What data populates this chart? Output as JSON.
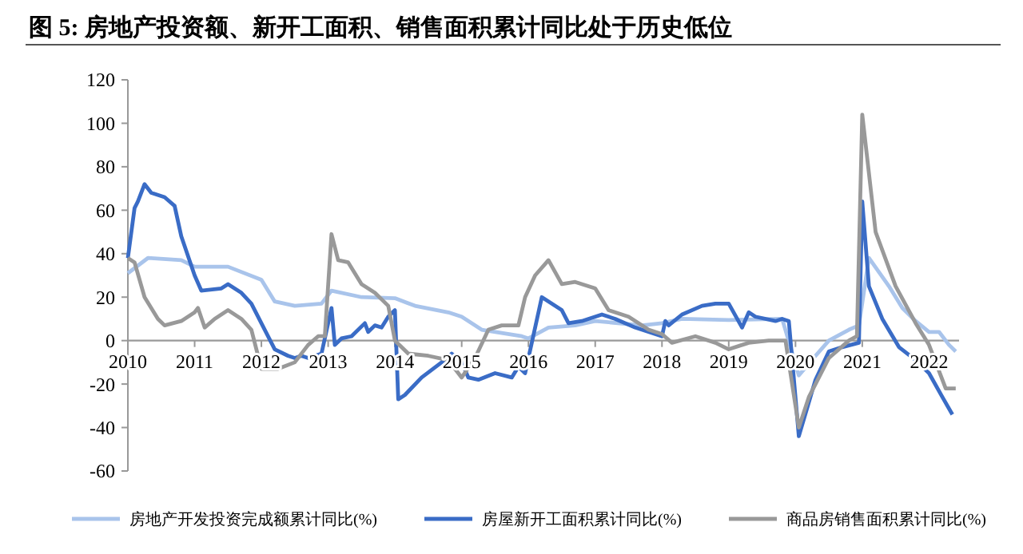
{
  "chart_data": {
    "type": "line",
    "title": "图  5:  房地产投资额、新开工面积、销售面积累计同比处于历史低位",
    "xlim": [
      2010,
      2022.45
    ],
    "xticks": [
      2010,
      2011,
      2012,
      2013,
      2014,
      2015,
      2016,
      2017,
      2018,
      2019,
      2020,
      2021,
      2022
    ],
    "ylim": [
      -60,
      120
    ],
    "yticks": [
      -60,
      -40,
      -20,
      0,
      20,
      40,
      60,
      80,
      100,
      120
    ],
    "grid": false,
    "legend": "bottom",
    "line_style": "solid",
    "series": [
      {
        "name": "房地产开发投资完成额累计同比(%)",
        "color": "#a9c4eb",
        "x": [
          2010,
          2010.3,
          2010.8,
          2011,
          2011.5,
          2012,
          2012.2,
          2012.5,
          2012.9,
          2013.05,
          2013.5,
          2014,
          2014.3,
          2014.8,
          2015,
          2015.3,
          2015.9,
          2016,
          2016.3,
          2016.7,
          2017,
          2017.7,
          2018,
          2018.3,
          2019,
          2019.8,
          2020.05,
          2020.3,
          2020.5,
          2020.8,
          2020.95,
          2021.1,
          2021.4,
          2021.6,
          2021.8,
          2022,
          2022.15,
          2022.3,
          2022.4
        ],
        "values": [
          31,
          38,
          37,
          34,
          34,
          28,
          18,
          16,
          17,
          23,
          20,
          19.5,
          16,
          13,
          11,
          5,
          2,
          1,
          6,
          7,
          9,
          7,
          8,
          10,
          9.5,
          10,
          -16,
          -7,
          0,
          5,
          7,
          38,
          25,
          15,
          9,
          4,
          4,
          -2,
          -5
        ]
      },
      {
        "name": "房屋新开工面积累计同比(%)",
        "color": "#3a6cc6",
        "x": [
          2010,
          2010.1,
          2010.15,
          2010.25,
          2010.35,
          2010.55,
          2010.7,
          2010.8,
          2011,
          2011.1,
          2011.4,
          2011.5,
          2011.7,
          2011.85,
          2012.05,
          2012.2,
          2012.4,
          2012.5,
          2012.6,
          2012.7,
          2012.9,
          2013.05,
          2013.1,
          2013.2,
          2013.35,
          2013.55,
          2013.6,
          2013.7,
          2013.8,
          2013.9,
          2014,
          2014.05,
          2014.15,
          2014.4,
          2014.7,
          2014.85,
          2015,
          2015.1,
          2015.25,
          2015.5,
          2015.75,
          2015.85,
          2015.95,
          2016.2,
          2016.5,
          2016.6,
          2016.8,
          2017.1,
          2017.3,
          2017.6,
          2018,
          2018.05,
          2018.1,
          2018.3,
          2018.6,
          2018.8,
          2019,
          2019.2,
          2019.3,
          2019.4,
          2019.7,
          2019.8,
          2019.9,
          2020.05,
          2020.3,
          2020.5,
          2020.7,
          2020.95,
          2021,
          2021.1,
          2021.3,
          2021.55,
          2021.8,
          2022,
          2022.2,
          2022.35
        ],
        "values": [
          38,
          61,
          64,
          72,
          68,
          66,
          62,
          48,
          30,
          23,
          24,
          26,
          22,
          17,
          5,
          -4,
          -7,
          -8,
          -7,
          -8,
          -6,
          15,
          -2,
          1,
          2,
          8,
          4,
          7,
          6,
          11,
          14,
          -27,
          -25,
          -17,
          -10,
          -6,
          -10,
          -17,
          -18,
          -15,
          -17,
          -12,
          -15,
          20,
          14,
          8,
          9,
          12,
          10,
          6,
          2,
          9,
          7,
          12,
          16,
          17,
          17,
          6,
          13,
          11,
          9,
          10,
          9,
          -44,
          -18,
          -5,
          -3,
          -1,
          64,
          25,
          10,
          -3,
          -9,
          -15,
          -26,
          -34
        ]
      },
      {
        "name": "商品房销售面积累计同比(%)",
        "color": "#999999",
        "x": [
          2010,
          2010.1,
          2010.25,
          2010.45,
          2010.55,
          2010.8,
          2011,
          2011.05,
          2011.15,
          2011.3,
          2011.5,
          2011.7,
          2011.85,
          2012,
          2012.25,
          2012.5,
          2012.7,
          2012.85,
          2012.95,
          2013.05,
          2013.15,
          2013.3,
          2013.5,
          2013.7,
          2013.9,
          2014,
          2014.2,
          2014.5,
          2014.8,
          2015,
          2015.2,
          2015.4,
          2015.6,
          2015.85,
          2015.95,
          2016.1,
          2016.3,
          2016.5,
          2016.7,
          2017,
          2017.2,
          2017.5,
          2017.8,
          2018,
          2018.15,
          2018.5,
          2018.8,
          2019,
          2019.3,
          2019.6,
          2019.85,
          2020.05,
          2020.2,
          2020.5,
          2020.8,
          2020.92,
          2021,
          2021.2,
          2021.5,
          2021.8,
          2022,
          2022.25,
          2022.4
        ],
        "values": [
          38,
          36,
          20,
          10,
          7,
          9,
          13,
          15,
          6,
          10,
          14,
          10,
          5,
          -13,
          -13,
          -10,
          -2,
          2,
          2,
          49,
          37,
          36,
          26,
          22,
          16,
          0,
          -6,
          -7,
          -9,
          -17,
          -8,
          5,
          7,
          7,
          20,
          30,
          37,
          26,
          27,
          24,
          14,
          11,
          5,
          3,
          -1,
          2,
          -1,
          -4,
          -1,
          0,
          0,
          -40,
          -26,
          -8,
          0,
          2,
          104,
          50,
          25,
          8,
          -2,
          -22,
          -22
        ]
      }
    ]
  }
}
